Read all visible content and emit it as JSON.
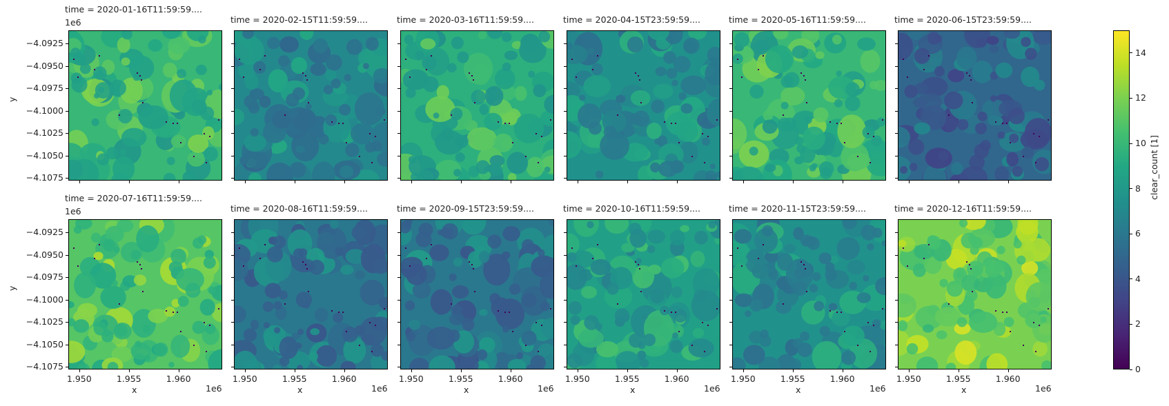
{
  "chart_data": {
    "type": "heatmap",
    "title": "",
    "variable": "clear_count",
    "facet_label_template": "time = {t}....",
    "xlabel": "x",
    "ylabel": "y",
    "x_offset_text": "1e6",
    "y_offset_text": "1e6",
    "x_ticks": [
      1.95,
      1.955,
      1.96
    ],
    "x_tick_labels": [
      "1.950",
      "1.955",
      "1.960"
    ],
    "y_ticks": [
      -4.0925,
      -4.095,
      -4.0975,
      -4.1,
      -4.1025,
      -4.105,
      -4.1075
    ],
    "y_tick_labels": [
      "−4.0925",
      "−4.0950",
      "−4.0975",
      "−4.1000",
      "−4.1025",
      "−4.1050",
      "−4.1075"
    ],
    "xlim": [
      1.9489,
      1.9644
    ],
    "ylim": [
      -4.1078,
      -4.091
    ],
    "colormap": "viridis",
    "colorbar": {
      "label": "clear_count [1]",
      "range": [
        0,
        15
      ],
      "ticks": [
        0,
        2,
        4,
        6,
        8,
        10,
        12,
        14
      ],
      "tick_labels": [
        "0",
        "2",
        "4",
        "6",
        "8",
        "10",
        "12",
        "14"
      ]
    },
    "layout": {
      "rows": 2,
      "cols": 6,
      "grid": false
    },
    "panels": [
      {
        "time": "2020-01-16T11:59:59",
        "title": "time = 2020-01-16T11:59:59....",
        "approx_mean_clear_count": 10
      },
      {
        "time": "2020-02-15T11:59:59",
        "title": "time = 2020-02-15T11:59:59....",
        "approx_mean_clear_count": 7
      },
      {
        "time": "2020-03-16T11:59:59",
        "title": "time = 2020-03-16T11:59:59....",
        "approx_mean_clear_count": 9.5
      },
      {
        "time": "2020-04-15T23:59:59",
        "title": "time = 2020-04-15T23:59:59....",
        "approx_mean_clear_count": 7.5
      },
      {
        "time": "2020-05-16T11:59:59",
        "title": "time = 2020-05-16T11:59:59....",
        "approx_mean_clear_count": 10
      },
      {
        "time": "2020-06-15T23:59:59",
        "title": "time = 2020-06-15T23:59:59....",
        "approx_mean_clear_count": 5
      },
      {
        "time": "2020-07-16T11:59:59",
        "title": "time = 2020-07-16T11:59:59....",
        "approx_mean_clear_count": 11
      },
      {
        "time": "2020-08-16T11:59:59",
        "title": "time = 2020-08-16T11:59:59....",
        "approx_mean_clear_count": 6
      },
      {
        "time": "2020-09-15T23:59:59",
        "title": "time = 2020-09-15T23:59:59....",
        "approx_mean_clear_count": 6
      },
      {
        "time": "2020-10-16T11:59:59",
        "title": "time = 2020-10-16T11:59:59....",
        "approx_mean_clear_count": 8.5
      },
      {
        "time": "2020-11-15T23:59:59",
        "title": "time = 2020-11-15T23:59:59....",
        "approx_mean_clear_count": 7.5
      },
      {
        "time": "2020-12-16T11:59:59",
        "title": "time = 2020-12-16T11:59:59....",
        "approx_mean_clear_count": 12
      }
    ]
  }
}
